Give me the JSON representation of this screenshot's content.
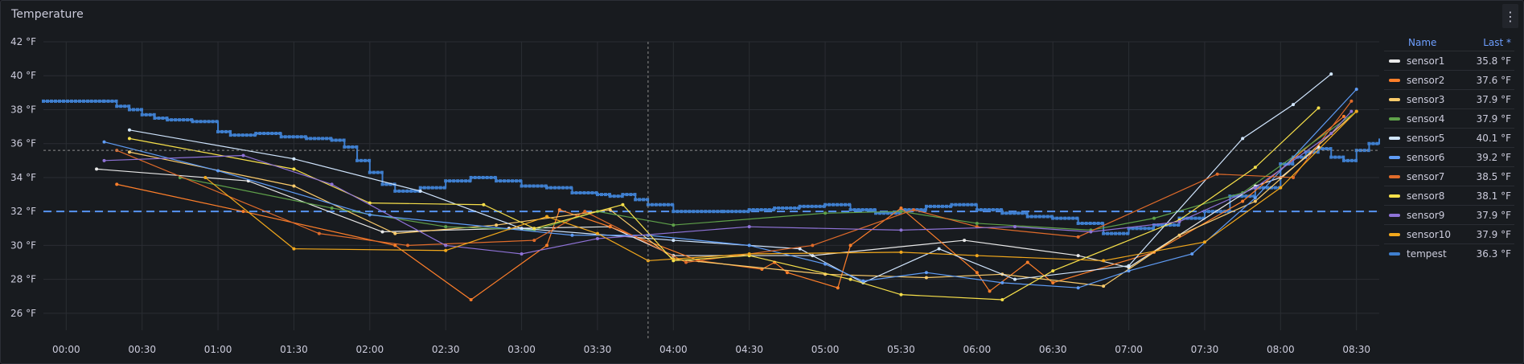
{
  "panel": {
    "title": "Temperature",
    "menu_icon": "kebab-menu-icon"
  },
  "legend": {
    "header_name": "Name",
    "header_last": "Last *",
    "items": [
      {
        "name": "sensor1",
        "last": "35.8 °F",
        "color": "#e9e9e9"
      },
      {
        "name": "sensor2",
        "last": "37.6 °F",
        "color": "#ff7f2a"
      },
      {
        "name": "sensor3",
        "last": "37.9 °F",
        "color": "#fbcb6b"
      },
      {
        "name": "sensor4",
        "last": "37.9 °F",
        "color": "#5fa14a"
      },
      {
        "name": "sensor5",
        "last": "40.1 °F",
        "color": "#d1e6ff"
      },
      {
        "name": "sensor6",
        "last": "39.2 °F",
        "color": "#5f9cf5"
      },
      {
        "name": "sensor7",
        "last": "38.5 °F",
        "color": "#e06b2a"
      },
      {
        "name": "sensor8",
        "last": "38.1 °F",
        "color": "#f7e04a"
      },
      {
        "name": "sensor9",
        "last": "37.9 °F",
        "color": "#8f73d8"
      },
      {
        "name": "sensor10",
        "last": "37.9 °F",
        "color": "#f2a81c"
      },
      {
        "name": "tempest",
        "last": "36.3 °F",
        "color": "#3f7fcf"
      }
    ]
  },
  "chart_data": {
    "type": "line",
    "ylim": [
      25,
      42
    ],
    "y_ticks": [
      26,
      28,
      30,
      32,
      34,
      36,
      38,
      40,
      42
    ],
    "y_tick_labels": [
      "26 °F",
      "28 °F",
      "30 °F",
      "32 °F",
      "34 °F",
      "36 °F",
      "38 °F",
      "40 °F",
      "42 °F"
    ],
    "xlim": [
      "23:51",
      "08:39"
    ],
    "x_ticks": [
      "00:00",
      "00:30",
      "01:00",
      "01:30",
      "02:00",
      "02:30",
      "03:00",
      "03:30",
      "04:00",
      "04:30",
      "05:00",
      "05:30",
      "06:00",
      "06:30",
      "07:00",
      "07:30",
      "08:00",
      "08:30"
    ],
    "threshold": {
      "value": 32,
      "color": "#5794f2",
      "style": "dashed"
    },
    "crosshair": {
      "x": "03:50",
      "y": 35.6
    },
    "series": [
      {
        "name": "sensor1",
        "points": [
          [
            "00:12",
            34.5
          ],
          [
            "01:12",
            33.8
          ],
          [
            "02:05",
            30.8
          ],
          [
            "02:55",
            31.0
          ],
          [
            "03:35",
            31.1
          ],
          [
            "04:00",
            29.4
          ],
          [
            "04:55",
            29.4
          ],
          [
            "05:55",
            30.3
          ],
          [
            "06:40",
            29.4
          ],
          [
            "07:00",
            28.7
          ],
          [
            "07:50",
            33.5
          ],
          [
            "08:00",
            34.0
          ],
          [
            "08:15",
            35.8
          ]
        ]
      },
      {
        "name": "sensor2",
        "points": [
          [
            "00:20",
            33.6
          ],
          [
            "01:10",
            32.0
          ],
          [
            "02:10",
            30.0
          ],
          [
            "02:40",
            26.8
          ],
          [
            "03:10",
            30.0
          ],
          [
            "03:15",
            32.1
          ],
          [
            "03:35",
            31.1
          ],
          [
            "04:10",
            29.1
          ],
          [
            "04:35",
            28.6
          ],
          [
            "04:40",
            29.0
          ],
          [
            "04:45",
            28.4
          ],
          [
            "05:05",
            27.5
          ],
          [
            "05:10",
            30.0
          ],
          [
            "05:30",
            32.2
          ],
          [
            "06:00",
            28.4
          ],
          [
            "06:05",
            27.3
          ],
          [
            "06:20",
            29.0
          ],
          [
            "06:30",
            27.8
          ],
          [
            "07:10",
            29.6
          ],
          [
            "07:45",
            32.6
          ],
          [
            "08:25",
            37.6
          ]
        ]
      },
      {
        "name": "sensor3",
        "points": [
          [
            "00:25",
            35.5
          ],
          [
            "01:30",
            33.5
          ],
          [
            "02:10",
            30.7
          ],
          [
            "02:50",
            31.2
          ],
          [
            "03:35",
            32.1
          ],
          [
            "04:00",
            29.2
          ],
          [
            "05:00",
            28.3
          ],
          [
            "05:40",
            28.1
          ],
          [
            "06:10",
            28.3
          ],
          [
            "06:50",
            27.6
          ],
          [
            "07:20",
            30.6
          ],
          [
            "07:50",
            32.6
          ],
          [
            "08:30",
            37.9
          ]
        ]
      },
      {
        "name": "sensor4",
        "points": [
          [
            "00:45",
            34.0
          ],
          [
            "01:45",
            32.2
          ],
          [
            "02:30",
            31.1
          ],
          [
            "03:05",
            30.9
          ],
          [
            "03:30",
            32.0
          ],
          [
            "04:00",
            31.2
          ],
          [
            "05:00",
            31.9
          ],
          [
            "05:30",
            32.0
          ],
          [
            "06:00",
            31.3
          ],
          [
            "06:45",
            30.9
          ],
          [
            "07:10",
            31.6
          ],
          [
            "07:45",
            33.1
          ],
          [
            "08:30",
            37.9
          ]
        ]
      },
      {
        "name": "sensor5",
        "points": [
          [
            "00:25",
            36.8
          ],
          [
            "01:30",
            35.1
          ],
          [
            "02:20",
            33.2
          ],
          [
            "03:00",
            31.0
          ],
          [
            "04:00",
            30.3
          ],
          [
            "04:50",
            29.8
          ],
          [
            "05:15",
            27.8
          ],
          [
            "05:45",
            29.8
          ],
          [
            "06:15",
            28.0
          ],
          [
            "07:00",
            28.8
          ],
          [
            "07:45",
            36.3
          ],
          [
            "08:05",
            38.3
          ],
          [
            "08:20",
            40.1
          ]
        ]
      },
      {
        "name": "sensor6",
        "points": [
          [
            "00:15",
            36.1
          ],
          [
            "01:00",
            34.4
          ],
          [
            "02:00",
            31.8
          ],
          [
            "03:20",
            30.6
          ],
          [
            "03:50",
            30.6
          ],
          [
            "04:30",
            30.0
          ],
          [
            "05:00",
            28.9
          ],
          [
            "05:15",
            27.9
          ],
          [
            "05:40",
            28.4
          ],
          [
            "06:10",
            27.8
          ],
          [
            "06:40",
            27.5
          ],
          [
            "07:00",
            28.5
          ],
          [
            "07:25",
            29.5
          ],
          [
            "07:50",
            32.8
          ],
          [
            "08:30",
            39.2
          ]
        ]
      },
      {
        "name": "sensor7",
        "points": [
          [
            "00:20",
            35.6
          ],
          [
            "01:40",
            30.7
          ],
          [
            "02:15",
            30.0
          ],
          [
            "03:05",
            30.3
          ],
          [
            "03:25",
            32.0
          ],
          [
            "04:05",
            29.0
          ],
          [
            "04:55",
            30.0
          ],
          [
            "05:35",
            32.1
          ],
          [
            "06:00",
            31.1
          ],
          [
            "06:40",
            30.5
          ],
          [
            "07:35",
            34.2
          ],
          [
            "08:05",
            34.0
          ],
          [
            "08:28",
            38.5
          ]
        ]
      },
      {
        "name": "sensor8",
        "points": [
          [
            "00:25",
            36.3
          ],
          [
            "01:30",
            34.5
          ],
          [
            "02:00",
            32.5
          ],
          [
            "02:45",
            32.4
          ],
          [
            "03:05",
            31.0
          ],
          [
            "03:40",
            32.4
          ],
          [
            "04:00",
            29.1
          ],
          [
            "04:30",
            29.4
          ],
          [
            "05:10",
            28.0
          ],
          [
            "05:30",
            27.1
          ],
          [
            "06:10",
            26.8
          ],
          [
            "06:30",
            28.5
          ],
          [
            "07:20",
            31.5
          ],
          [
            "07:50",
            34.6
          ],
          [
            "08:15",
            38.1
          ]
        ]
      },
      {
        "name": "sensor9",
        "points": [
          [
            "00:15",
            35.0
          ],
          [
            "01:10",
            35.3
          ],
          [
            "01:45",
            33.6
          ],
          [
            "02:30",
            30.0
          ],
          [
            "03:00",
            29.5
          ],
          [
            "03:30",
            30.4
          ],
          [
            "04:30",
            31.1
          ],
          [
            "05:30",
            30.9
          ],
          [
            "06:15",
            31.1
          ],
          [
            "06:45",
            30.8
          ],
          [
            "07:20",
            31.4
          ],
          [
            "07:50",
            33.4
          ],
          [
            "08:20",
            36.6
          ],
          [
            "08:28",
            37.9
          ]
        ]
      },
      {
        "name": "sensor10",
        "points": [
          [
            "00:55",
            34.0
          ],
          [
            "01:30",
            29.8
          ],
          [
            "02:30",
            29.7
          ],
          [
            "03:10",
            31.7
          ],
          [
            "03:30",
            30.7
          ],
          [
            "03:50",
            29.1
          ],
          [
            "04:30",
            29.5
          ],
          [
            "05:30",
            29.6
          ],
          [
            "06:00",
            29.4
          ],
          [
            "06:50",
            29.1
          ],
          [
            "07:30",
            30.2
          ],
          [
            "08:00",
            33.4
          ],
          [
            "08:30",
            37.9
          ]
        ]
      }
    ],
    "tempest": {
      "name": "tempest",
      "points": [
        [
          "23:51",
          38.5
        ],
        [
          "00:10",
          38.5
        ],
        [
          "00:15",
          38.5
        ],
        [
          "00:20",
          38.2
        ],
        [
          "00:25",
          38.0
        ],
        [
          "00:30",
          37.7
        ],
        [
          "00:35",
          37.5
        ],
        [
          "00:40",
          37.4
        ],
        [
          "00:50",
          37.3
        ],
        [
          "01:00",
          36.7
        ],
        [
          "01:05",
          36.5
        ],
        [
          "01:15",
          36.6
        ],
        [
          "01:25",
          36.4
        ],
        [
          "01:35",
          36.3
        ],
        [
          "01:45",
          36.2
        ],
        [
          "01:50",
          35.8
        ],
        [
          "01:55",
          35.0
        ],
        [
          "02:00",
          34.3
        ],
        [
          "02:05",
          33.6
        ],
        [
          "02:10",
          33.2
        ],
        [
          "02:20",
          33.4
        ],
        [
          "02:30",
          33.8
        ],
        [
          "02:40",
          34.0
        ],
        [
          "02:50",
          33.8
        ],
        [
          "03:00",
          33.5
        ],
        [
          "03:10",
          33.4
        ],
        [
          "03:20",
          33.1
        ],
        [
          "03:30",
          33.0
        ],
        [
          "03:35",
          32.9
        ],
        [
          "03:40",
          33.0
        ],
        [
          "03:45",
          32.7
        ],
        [
          "03:50",
          32.4
        ],
        [
          "04:00",
          32.0
        ],
        [
          "04:20",
          32.0
        ],
        [
          "04:30",
          32.1
        ],
        [
          "04:40",
          32.2
        ],
        [
          "04:50",
          32.3
        ],
        [
          "05:00",
          32.4
        ],
        [
          "05:10",
          32.1
        ],
        [
          "05:20",
          31.9
        ],
        [
          "05:30",
          32.1
        ],
        [
          "05:40",
          32.3
        ],
        [
          "05:50",
          32.4
        ],
        [
          "06:00",
          32.1
        ],
        [
          "06:10",
          31.9
        ],
        [
          "06:20",
          31.7
        ],
        [
          "06:30",
          31.6
        ],
        [
          "06:40",
          31.3
        ],
        [
          "06:50",
          30.7
        ],
        [
          "07:00",
          31.0
        ],
        [
          "07:10",
          31.2
        ],
        [
          "07:20",
          31.6
        ],
        [
          "07:30",
          32.0
        ],
        [
          "07:40",
          32.9
        ],
        [
          "07:50",
          33.4
        ],
        [
          "08:00",
          34.8
        ],
        [
          "08:05",
          35.2
        ],
        [
          "08:10",
          35.5
        ],
        [
          "08:15",
          35.7
        ],
        [
          "08:20",
          35.2
        ],
        [
          "08:25",
          35.0
        ],
        [
          "08:30",
          35.6
        ],
        [
          "08:35",
          36.0
        ],
        [
          "08:39",
          36.3
        ]
      ]
    }
  }
}
